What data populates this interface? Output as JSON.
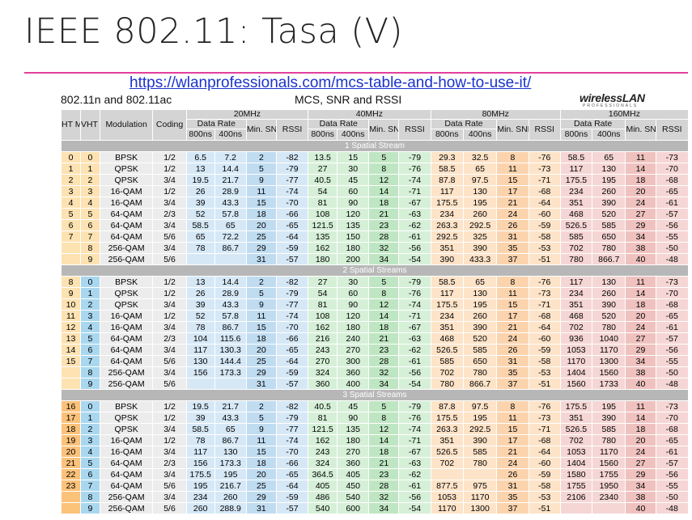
{
  "slide": {
    "title": "IEEE 802.11: Tasa (V)",
    "link": "https://wlanprofessionals.com/mcs-table-and-how-to-use-it/",
    "subtitle_left": "802.11n and 802.11ac",
    "subtitle_mid": "MCS, SNR and RSSI",
    "logo": "wirelessLAN",
    "logo_sub": "PROFESSIONALS"
  },
  "table": {
    "headers": {
      "ht": "HT MCS",
      "vht": "VHT MCS",
      "modulation": "Modulation",
      "coding": "Coding",
      "bands": [
        "20MHz",
        "40MHz",
        "80MHz",
        "160MHz"
      ],
      "data_rate": "Data Rate",
      "gi_800": "800ns",
      "gi_400": "400ns",
      "min_snr": "Min. SNR",
      "rssi": "RSSI"
    },
    "blocks": [
      {
        "label": "1 Spatial Stream",
        "rows": [
          [
            "0",
            "0",
            "BPSK",
            "1/2",
            "6.5",
            "7.2",
            "2",
            "-82",
            "13.5",
            "15",
            "5",
            "-79",
            "29.3",
            "32.5",
            "8",
            "-76",
            "58.5",
            "65",
            "11",
            "-73"
          ],
          [
            "1",
            "1",
            "QPSK",
            "1/2",
            "13",
            "14.4",
            "5",
            "-79",
            "27",
            "30",
            "8",
            "-76",
            "58.5",
            "65",
            "11",
            "-73",
            "117",
            "130",
            "14",
            "-70"
          ],
          [
            "2",
            "2",
            "QPSK",
            "3/4",
            "19.5",
            "21.7",
            "9",
            "-77",
            "40.5",
            "45",
            "12",
            "-74",
            "87.8",
            "97.5",
            "15",
            "-71",
            "175.5",
            "195",
            "18",
            "-68"
          ],
          [
            "3",
            "3",
            "16-QAM",
            "1/2",
            "26",
            "28.9",
            "11",
            "-74",
            "54",
            "60",
            "14",
            "-71",
            "117",
            "130",
            "17",
            "-68",
            "234",
            "260",
            "20",
            "-65"
          ],
          [
            "4",
            "4",
            "16-QAM",
            "3/4",
            "39",
            "43.3",
            "15",
            "-70",
            "81",
            "90",
            "18",
            "-67",
            "175.5",
            "195",
            "21",
            "-64",
            "351",
            "390",
            "24",
            "-61"
          ],
          [
            "5",
            "5",
            "64-QAM",
            "2/3",
            "52",
            "57.8",
            "18",
            "-66",
            "108",
            "120",
            "21",
            "-63",
            "234",
            "260",
            "24",
            "-60",
            "468",
            "520",
            "27",
            "-57"
          ],
          [
            "6",
            "6",
            "64-QAM",
            "3/4",
            "58.5",
            "65",
            "20",
            "-65",
            "121.5",
            "135",
            "23",
            "-62",
            "263.3",
            "292.5",
            "26",
            "-59",
            "526.5",
            "585",
            "29",
            "-56"
          ],
          [
            "7",
            "7",
            "64-QAM",
            "5/6",
            "65",
            "72.2",
            "25",
            "-64",
            "135",
            "150",
            "28",
            "-61",
            "292.5",
            "325",
            "31",
            "-58",
            "585",
            "650",
            "34",
            "-55"
          ],
          [
            "",
            "8",
            "256-QAM",
            "3/4",
            "78",
            "86.7",
            "29",
            "-59",
            "162",
            "180",
            "32",
            "-56",
            "351",
            "390",
            "35",
            "-53",
            "702",
            "780",
            "38",
            "-50"
          ],
          [
            "",
            "9",
            "256-QAM",
            "5/6",
            "",
            "",
            "31",
            "-57",
            "180",
            "200",
            "34",
            "-54",
            "390",
            "433.3",
            "37",
            "-51",
            "780",
            "866.7",
            "40",
            "-48"
          ]
        ]
      },
      {
        "label": "2 Spatial Streams",
        "rows": [
          [
            "8",
            "0",
            "BPSK",
            "1/2",
            "13",
            "14.4",
            "2",
            "-82",
            "27",
            "30",
            "5",
            "-79",
            "58.5",
            "65",
            "8",
            "-76",
            "117",
            "130",
            "11",
            "-73"
          ],
          [
            "9",
            "1",
            "QPSK",
            "1/2",
            "26",
            "28.9",
            "5",
            "-79",
            "54",
            "60",
            "8",
            "-76",
            "117",
            "130",
            "11",
            "-73",
            "234",
            "260",
            "14",
            "-70"
          ],
          [
            "10",
            "2",
            "QPSK",
            "3/4",
            "39",
            "43.3",
            "9",
            "-77",
            "81",
            "90",
            "12",
            "-74",
            "175.5",
            "195",
            "15",
            "-71",
            "351",
            "390",
            "18",
            "-68"
          ],
          [
            "11",
            "3",
            "16-QAM",
            "1/2",
            "52",
            "57.8",
            "11",
            "-74",
            "108",
            "120",
            "14",
            "-71",
            "234",
            "260",
            "17",
            "-68",
            "468",
            "520",
            "20",
            "-65"
          ],
          [
            "12",
            "4",
            "16-QAM",
            "3/4",
            "78",
            "86.7",
            "15",
            "-70",
            "162",
            "180",
            "18",
            "-67",
            "351",
            "390",
            "21",
            "-64",
            "702",
            "780",
            "24",
            "-61"
          ],
          [
            "13",
            "5",
            "64-QAM",
            "2/3",
            "104",
            "115.6",
            "18",
            "-66",
            "216",
            "240",
            "21",
            "-63",
            "468",
            "520",
            "24",
            "-60",
            "936",
            "1040",
            "27",
            "-57"
          ],
          [
            "14",
            "6",
            "64-QAM",
            "3/4",
            "117",
            "130.3",
            "20",
            "-65",
            "243",
            "270",
            "23",
            "-62",
            "526.5",
            "585",
            "26",
            "-59",
            "1053",
            "1170",
            "29",
            "-56"
          ],
          [
            "15",
            "7",
            "64-QAM",
            "5/6",
            "130",
            "144.4",
            "25",
            "-64",
            "270",
            "300",
            "28",
            "-61",
            "585",
            "650",
            "31",
            "-58",
            "1170",
            "1300",
            "34",
            "-55"
          ],
          [
            "",
            "8",
            "256-QAM",
            "3/4",
            "156",
            "173.3",
            "29",
            "-59",
            "324",
            "360",
            "32",
            "-56",
            "702",
            "780",
            "35",
            "-53",
            "1404",
            "1560",
            "38",
            "-50"
          ],
          [
            "",
            "9",
            "256-QAM",
            "5/6",
            "",
            "",
            "31",
            "-57",
            "360",
            "400",
            "34",
            "-54",
            "780",
            "866.7",
            "37",
            "-51",
            "1560",
            "1733",
            "40",
            "-48"
          ]
        ]
      },
      {
        "label": "3 Spatial Streams",
        "rows": [
          [
            "16",
            "0",
            "BPSK",
            "1/2",
            "19.5",
            "21.7",
            "2",
            "-82",
            "40.5",
            "45",
            "5",
            "-79",
            "87.8",
            "97.5",
            "8",
            "-76",
            "175.5",
            "195",
            "11",
            "-73"
          ],
          [
            "17",
            "1",
            "QPSK",
            "1/2",
            "39",
            "43.3",
            "5",
            "-79",
            "81",
            "90",
            "8",
            "-76",
            "175.5",
            "195",
            "11",
            "-73",
            "351",
            "390",
            "14",
            "-70"
          ],
          [
            "18",
            "2",
            "QPSK",
            "3/4",
            "58.5",
            "65",
            "9",
            "-77",
            "121.5",
            "135",
            "12",
            "-74",
            "263.3",
            "292.5",
            "15",
            "-71",
            "526.5",
            "585",
            "18",
            "-68"
          ],
          [
            "19",
            "3",
            "16-QAM",
            "1/2",
            "78",
            "86.7",
            "11",
            "-74",
            "162",
            "180",
            "14",
            "-71",
            "351",
            "390",
            "17",
            "-68",
            "702",
            "780",
            "20",
            "-65"
          ],
          [
            "20",
            "4",
            "16-QAM",
            "3/4",
            "117",
            "130",
            "15",
            "-70",
            "243",
            "270",
            "18",
            "-67",
            "526.5",
            "585",
            "21",
            "-64",
            "1053",
            "1170",
            "24",
            "-61"
          ],
          [
            "21",
            "5",
            "64-QAM",
            "2/3",
            "156",
            "173.3",
            "18",
            "-66",
            "324",
            "360",
            "21",
            "-63",
            "702",
            "780",
            "24",
            "-60",
            "1404",
            "1560",
            "27",
            "-57"
          ],
          [
            "22",
            "6",
            "64-QAM",
            "3/4",
            "175.5",
            "195",
            "20",
            "-65",
            "364.5",
            "405",
            "23",
            "-62",
            "",
            "",
            "26",
            "-59",
            "1580",
            "1755",
            "29",
            "-56"
          ],
          [
            "23",
            "7",
            "64-QAM",
            "5/6",
            "195",
            "216.7",
            "25",
            "-64",
            "405",
            "450",
            "28",
            "-61",
            "877.5",
            "975",
            "31",
            "-58",
            "1755",
            "1950",
            "34",
            "-55"
          ],
          [
            "",
            "8",
            "256-QAM",
            "3/4",
            "234",
            "260",
            "29",
            "-59",
            "486",
            "540",
            "32",
            "-56",
            "1053",
            "1170",
            "35",
            "-53",
            "2106",
            "2340",
            "38",
            "-50"
          ],
          [
            "",
            "9",
            "256-QAM",
            "5/6",
            "260",
            "288.9",
            "31",
            "-57",
            "540",
            "600",
            "34",
            "-54",
            "1170",
            "1300",
            "37",
            "-51",
            "",
            "",
            "40",
            "-48"
          ]
        ]
      }
    ]
  }
}
